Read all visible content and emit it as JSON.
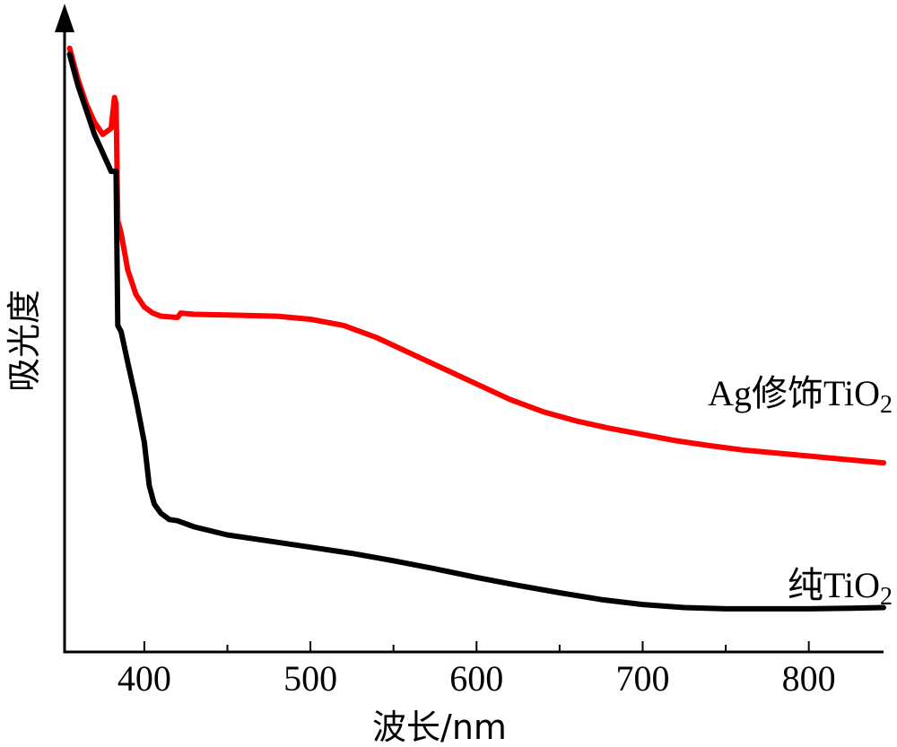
{
  "chart_data": {
    "type": "line",
    "xlabel": "波长/nm",
    "ylabel": "吸光度",
    "xlim": [
      352,
      845
    ],
    "ylim": [
      0,
      1
    ],
    "x_ticks": [
      400,
      500,
      600,
      700,
      800
    ],
    "y_ticks_shown": false,
    "grid": false,
    "series": [
      {
        "name": "Ag修饰TiO2",
        "label_main": "Ag修饰TiO",
        "label_sub": "2",
        "color": "#ff0000",
        "points": [
          [
            355,
            0.98
          ],
          [
            360,
            0.93
          ],
          [
            365,
            0.89
          ],
          [
            370,
            0.86
          ],
          [
            375,
            0.84
          ],
          [
            380,
            0.85
          ],
          [
            382,
            0.9
          ],
          [
            383,
            0.89
          ],
          [
            384,
            0.7
          ],
          [
            386,
            0.68
          ],
          [
            390,
            0.62
          ],
          [
            395,
            0.58
          ],
          [
            400,
            0.56
          ],
          [
            405,
            0.55
          ],
          [
            410,
            0.545
          ],
          [
            420,
            0.543
          ],
          [
            422,
            0.55
          ],
          [
            430,
            0.548
          ],
          [
            450,
            0.547
          ],
          [
            480,
            0.545
          ],
          [
            500,
            0.54
          ],
          [
            520,
            0.53
          ],
          [
            540,
            0.51
          ],
          [
            560,
            0.485
          ],
          [
            580,
            0.46
          ],
          [
            600,
            0.435
          ],
          [
            620,
            0.41
          ],
          [
            640,
            0.39
          ],
          [
            660,
            0.375
          ],
          [
            680,
            0.363
          ],
          [
            700,
            0.353
          ],
          [
            720,
            0.343
          ],
          [
            740,
            0.335
          ],
          [
            760,
            0.328
          ],
          [
            780,
            0.323
          ],
          [
            800,
            0.318
          ],
          [
            820,
            0.313
          ],
          [
            845,
            0.307
          ]
        ]
      },
      {
        "name": "纯TiO2",
        "label_main": "纯TiO",
        "label_sub": "2",
        "color": "#000000",
        "points": [
          [
            355,
            0.97
          ],
          [
            360,
            0.92
          ],
          [
            365,
            0.88
          ],
          [
            370,
            0.84
          ],
          [
            375,
            0.81
          ],
          [
            380,
            0.78
          ],
          [
            383,
            0.78
          ],
          [
            384,
            0.53
          ],
          [
            386,
            0.52
          ],
          [
            390,
            0.47
          ],
          [
            395,
            0.41
          ],
          [
            400,
            0.34
          ],
          [
            403,
            0.27
          ],
          [
            406,
            0.24
          ],
          [
            410,
            0.225
          ],
          [
            415,
            0.215
          ],
          [
            420,
            0.213
          ],
          [
            430,
            0.203
          ],
          [
            450,
            0.19
          ],
          [
            475,
            0.18
          ],
          [
            500,
            0.17
          ],
          [
            525,
            0.16
          ],
          [
            550,
            0.148
          ],
          [
            575,
            0.135
          ],
          [
            600,
            0.121
          ],
          [
            625,
            0.108
          ],
          [
            650,
            0.096
          ],
          [
            675,
            0.085
          ],
          [
            700,
            0.077
          ],
          [
            725,
            0.072
          ],
          [
            750,
            0.07
          ],
          [
            775,
            0.07
          ],
          [
            800,
            0.07
          ],
          [
            825,
            0.071
          ],
          [
            845,
            0.072
          ]
        ]
      }
    ]
  }
}
